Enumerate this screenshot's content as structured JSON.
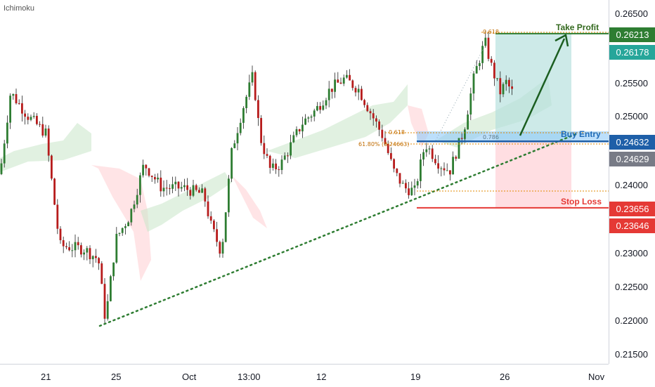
{
  "indicator": {
    "name": "Ichimoku"
  },
  "price_axis": {
    "ticks": [
      "0.26500",
      "0.25500",
      "0.25000",
      "0.24000",
      "0.23000",
      "0.22500",
      "0.22000",
      "0.21500"
    ],
    "tick_values": [
      0.265,
      0.255,
      0.25,
      0.24,
      0.23,
      0.225,
      0.22,
      0.215
    ]
  },
  "time_axis": {
    "ticks": [
      "21",
      "25",
      "Oct",
      "13:00",
      "12",
      "19",
      "26",
      "Nov"
    ]
  },
  "price_tags": [
    {
      "label": "0.26213",
      "value": 0.26213,
      "color": "#2e7d32"
    },
    {
      "label": "0.26178",
      "value": 0.26178,
      "color": "#26a69a"
    },
    {
      "label": "0.24632",
      "value": 0.24632,
      "color": "#1e5fa8"
    },
    {
      "label": "0.24629",
      "value": 0.24629,
      "color": "#787b86"
    },
    {
      "label": "0.23656",
      "value": 0.23656,
      "color": "#e53935"
    },
    {
      "label": "0.23646",
      "value": 0.23646,
      "color": "#e53935"
    }
  ],
  "annotations": {
    "take_profit": {
      "text": "Take Profit",
      "color": "#33691e",
      "value": 0.26213
    },
    "buy_entry": {
      "text": "Buy Entry",
      "color": "#1e6bb8",
      "value": 0.24632
    },
    "stop_loss": {
      "text": "Stop Loss",
      "color": "#e53935",
      "value": 0.23656
    }
  },
  "fib_labels": {
    "top": "0.618",
    "mid_left_a": "0.618",
    "mid_left_b": "61.80% (0.24663)",
    "mid_right": "0.786"
  },
  "colors": {
    "up_candle": "#26a69a",
    "bull": "#2e7d32",
    "bear": "#b71c1c",
    "cloud_green": "#c8e6c9",
    "cloud_red": "#ffcdd2",
    "profit_zone": "#b2dfdb",
    "loss_zone": "#ffcdd2",
    "trendline": "#2e7d32"
  }
}
